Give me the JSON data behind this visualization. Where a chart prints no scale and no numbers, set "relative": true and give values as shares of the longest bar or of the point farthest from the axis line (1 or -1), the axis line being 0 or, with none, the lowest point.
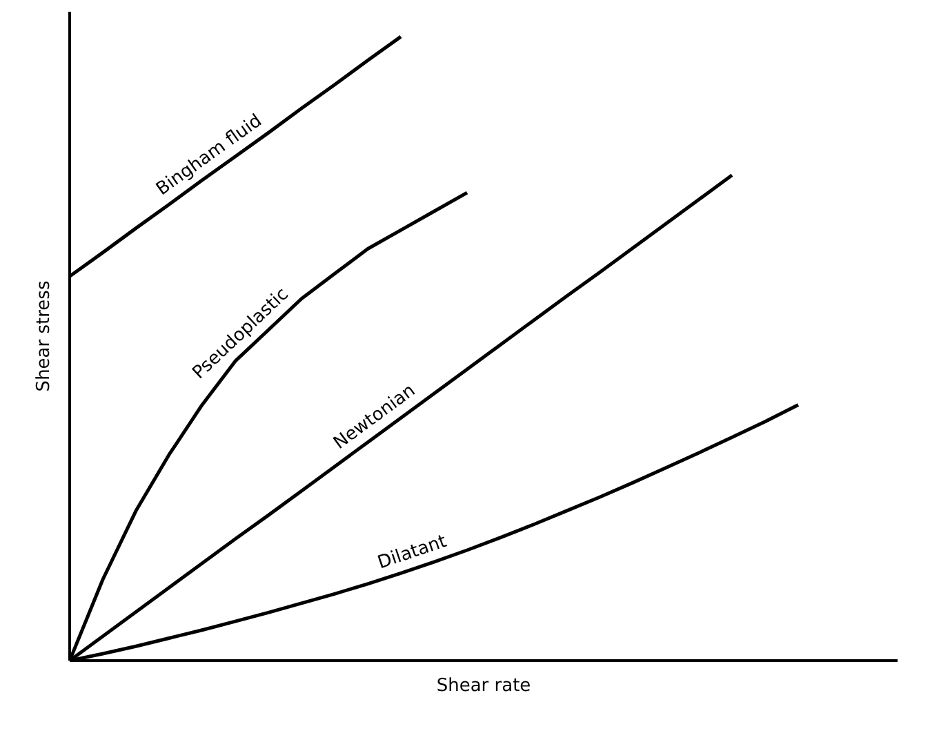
{
  "chart_data": {
    "type": "line",
    "relative": true,
    "xlabel": "Shear rate",
    "ylabel": "Shear stress",
    "grid": false,
    "categories": [
      null,
      null,
      null,
      null,
      null,
      null,
      null,
      null,
      null,
      null,
      null,
      null,
      null,
      null,
      null,
      null,
      null,
      null,
      null,
      null,
      null,
      null,
      null,
      null,
      null,
      null
    ],
    "series": [
      {
        "name": "Bingham fluid",
        "color": "#000000",
        "values": [
          0.616,
          0.654,
          0.693,
          0.731,
          0.77,
          0.808,
          0.846,
          0.885,
          0.923,
          0.962,
          1.0,
          null,
          null,
          null,
          null,
          null,
          null,
          null,
          null,
          null,
          null,
          null,
          null,
          null,
          null,
          null
        ]
      },
      {
        "name": "Pseudoplastic",
        "color": "#000000",
        "values": [
          0,
          0.13,
          0.24,
          0.33,
          0.41,
          0.48,
          0.53,
          0.58,
          0.62,
          0.66,
          0.69,
          0.72,
          0.75,
          null,
          null,
          null,
          null,
          null,
          null,
          null,
          null,
          null,
          null,
          null,
          null,
          null
        ]
      },
      {
        "name": "Newtonian",
        "color": "#000000",
        "values": [
          0,
          0.039,
          0.078,
          0.117,
          0.156,
          0.195,
          0.233,
          0.272,
          0.311,
          0.35,
          0.389,
          0.428,
          0.467,
          0.506,
          0.545,
          0.584,
          0.622,
          0.661,
          0.7,
          0.739,
          0.778,
          null,
          null,
          null,
          null,
          null
        ]
      },
      {
        "name": "Dilatant",
        "color": "#000000",
        "values": [
          0,
          0.011,
          0.023,
          0.036,
          0.049,
          0.063,
          0.077,
          0.092,
          0.107,
          0.123,
          0.14,
          0.158,
          0.177,
          0.197,
          0.218,
          0.24,
          0.262,
          0.285,
          0.309,
          0.333,
          0.358,
          0.383,
          0.41,
          null,
          null,
          null
        ]
      }
    ]
  }
}
